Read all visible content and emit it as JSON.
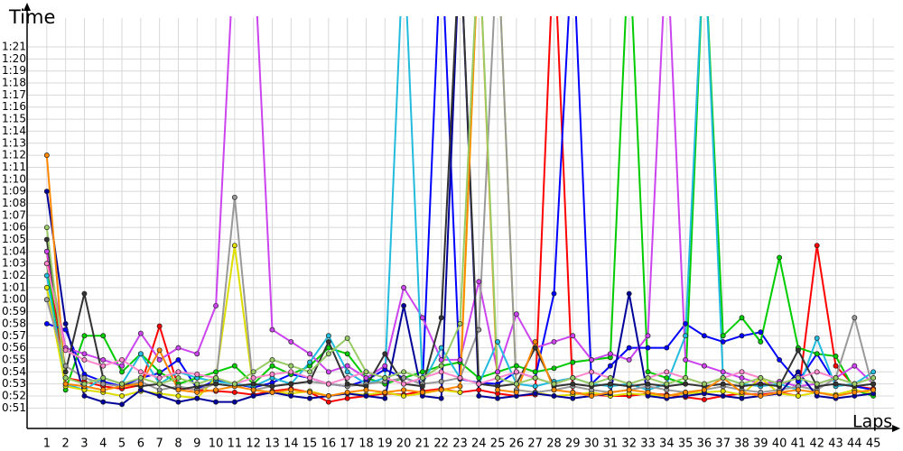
{
  "chart_data": {
    "type": "line",
    "x_label": "Laps",
    "y_label": "Time",
    "grid": true,
    "x": [
      1,
      2,
      3,
      4,
      5,
      6,
      7,
      8,
      9,
      10,
      11,
      12,
      13,
      14,
      15,
      16,
      17,
      18,
      19,
      20,
      21,
      22,
      23,
      24,
      25,
      26,
      27,
      28,
      29,
      30,
      31,
      32,
      33,
      34,
      35,
      36,
      37,
      38,
      39,
      40,
      41,
      42,
      43,
      44,
      45
    ],
    "xlim": [
      -0.05,
      46.1
    ],
    "xticks": [
      1,
      2,
      3,
      4,
      5,
      6,
      7,
      8,
      9,
      10,
      11,
      12,
      13,
      14,
      15,
      16,
      17,
      18,
      19,
      20,
      21,
      22,
      23,
      24,
      25,
      26,
      27,
      28,
      29,
      30,
      31,
      32,
      33,
      34,
      35,
      36,
      37,
      38,
      39,
      40,
      41,
      42,
      43,
      44,
      45
    ],
    "ylim": [
      49.3,
      83.4
    ],
    "yticks": [
      {
        "value": 51,
        "label": "0:51"
      },
      {
        "value": 52,
        "label": "0:52"
      },
      {
        "value": 53,
        "label": "0:53"
      },
      {
        "value": 54,
        "label": "0:54"
      },
      {
        "value": 55,
        "label": "0:55"
      },
      {
        "value": 56,
        "label": "0:56"
      },
      {
        "value": 57,
        "label": "0:57"
      },
      {
        "value": 58,
        "label": "0:58"
      },
      {
        "value": 59,
        "label": "0:59"
      },
      {
        "value": 60,
        "label": "1:00"
      },
      {
        "value": 61,
        "label": "1:01"
      },
      {
        "value": 62,
        "label": "1:02"
      },
      {
        "value": 63,
        "label": "1:03"
      },
      {
        "value": 64,
        "label": "1:04"
      },
      {
        "value": 65,
        "label": "1:05"
      },
      {
        "value": 66,
        "label": "1:06"
      },
      {
        "value": 67,
        "label": "1:07"
      },
      {
        "value": 68,
        "label": "1:08"
      },
      {
        "value": 69,
        "label": "1:09"
      },
      {
        "value": 70,
        "label": "1:10"
      },
      {
        "value": 71,
        "label": "1:11"
      },
      {
        "value": 72,
        "label": "1:12"
      },
      {
        "value": 73,
        "label": "1:13"
      },
      {
        "value": 74,
        "label": "1:14"
      },
      {
        "value": 75,
        "label": "1:15"
      },
      {
        "value": 76,
        "label": "1:16"
      },
      {
        "value": 77,
        "label": "1:17"
      },
      {
        "value": 78,
        "label": "1:18"
      },
      {
        "value": 79,
        "label": "1:19"
      },
      {
        "value": 80,
        "label": "1:20"
      },
      {
        "value": 81,
        "label": "1:21"
      }
    ],
    "series": [
      {
        "color": "#ff0000",
        "values": [
          64,
          53.5,
          53.2,
          52.8,
          52.6,
          52.9,
          57.8,
          52.7,
          52.5,
          52.4,
          52.3,
          52.1,
          52.4,
          52.6,
          52.3,
          51.5,
          51.8,
          52.0,
          52.2,
          52.1,
          52.4,
          52.6,
          52.3,
          52.5,
          52.2,
          52.0,
          52.1,
          90,
          52.3,
          52.1,
          52.0,
          52.0,
          52.2,
          52.1,
          51.9,
          51.7,
          52.0,
          52.2,
          52.1,
          52.3,
          52.0,
          64.5,
          54.5,
          52.8,
          52.6
        ]
      },
      {
        "color": "#0000ff",
        "values": [
          58,
          57.5,
          53.8,
          53.2,
          52.8,
          53.5,
          53.9,
          55.0,
          52.6,
          53.3,
          53.0,
          52.7,
          53.1,
          53.8,
          53.5,
          53.0,
          52.8,
          53.3,
          54.2,
          53.5,
          53.0,
          90,
          53.4,
          53.1,
          53.0,
          54.0,
          53.5,
          60.5,
          90,
          53.0,
          54.5,
          56.0,
          56.0,
          56.0,
          58.0,
          57.0,
          56.5,
          57.0,
          57.3,
          55.0,
          53.2,
          55.5,
          53.0,
          52.8,
          52.5
        ]
      },
      {
        "color": "#00cc00",
        "values": [
          63,
          52.5,
          57.0,
          57.0,
          54.0,
          55.5,
          54.0,
          53.0,
          53.5,
          54.0,
          54.5,
          53.0,
          54.5,
          53.8,
          54.5,
          56.0,
          55.5,
          53.5,
          53.0,
          53.5,
          54.0,
          54.5,
          54.8,
          53.5,
          54.0,
          54.5,
          54.0,
          54.3,
          54.8,
          55.0,
          55.2,
          90,
          54.0,
          53.5,
          53.0,
          90,
          57.0,
          58.5,
          56.5,
          63.5,
          56.0,
          55.5,
          55.3,
          52.5,
          52.0
        ]
      },
      {
        "color": "#cc44ee",
        "values": [
          64,
          56,
          55.5,
          55.0,
          54.5,
          57.2,
          55.0,
          56.0,
          55.5,
          59.5,
          90,
          90,
          57.5,
          56.5,
          55.5,
          54.0,
          54.5,
          53.5,
          54.5,
          61.0,
          58.5,
          55.0,
          55.0,
          61.5,
          54.0,
          58.8,
          56.0,
          56.5,
          57.0,
          55.0,
          55.5,
          55.0,
          57.0,
          90,
          55.0,
          54.5,
          54.0,
          53.5,
          53.0,
          53.2,
          52.8,
          53.0,
          53.5,
          54.5,
          53.0
        ]
      },
      {
        "color": "#22bbdd",
        "values": [
          62,
          53.0,
          52.5,
          53.5,
          53.0,
          55.5,
          53.0,
          54.0,
          53.5,
          53.2,
          53.0,
          52.8,
          53.5,
          53.0,
          54.8,
          57.0,
          54.0,
          53.0,
          53.5,
          90,
          53.0,
          56.0,
          53.5,
          53.0,
          56.5,
          53.0,
          52.8,
          53.2,
          53.5,
          53.0,
          52.8,
          53.0,
          52.5,
          53.0,
          57.0,
          90,
          53.5,
          53.0,
          52.8,
          53.0,
          52.5,
          56.8,
          52.8,
          53.0,
          54.0
        ]
      },
      {
        "color": "#dddd00",
        "values": [
          61,
          52.8,
          52.5,
          52.3,
          52.0,
          52.4,
          52.2,
          52.0,
          51.8,
          53.5,
          64.5,
          52.5,
          52.3,
          52.2,
          52.4,
          52.0,
          52.2,
          52.1,
          52.3,
          52.0,
          52.2,
          52.5,
          52.3,
          90,
          90,
          52.5,
          52.3,
          52.0,
          52.1,
          52.3,
          52.0,
          52.2,
          52.1,
          52.0,
          52.2,
          52.3,
          52.4,
          52.1,
          53.5,
          52.2,
          52.0,
          52.3,
          52.1,
          52.5,
          52.2
        ]
      },
      {
        "color": "#999999",
        "values": [
          60,
          54.5,
          53.5,
          53.0,
          52.8,
          53.2,
          52.5,
          52.8,
          52.5,
          53.0,
          68.5,
          52.5,
          52.8,
          53.0,
          53.2,
          53.0,
          52.8,
          53.0,
          53.2,
          53.5,
          53.0,
          53.2,
          53.5,
          57.5,
          90,
          52.5,
          52.3,
          52.5,
          52.8,
          52.5,
          52.3,
          52.5,
          52.8,
          52.5,
          52.3,
          52.5,
          52.8,
          52.5,
          52.3,
          52.5,
          52.8,
          52.5,
          53.5,
          58.5,
          52.5
        ]
      },
      {
        "color": "#000099",
        "values": [
          69,
          58,
          52.0,
          51.5,
          51.3,
          52.5,
          52.0,
          51.5,
          51.8,
          51.5,
          51.5,
          52.0,
          52.3,
          52.0,
          51.8,
          52.0,
          52.2,
          52.0,
          51.8,
          59.5,
          52.0,
          51.8,
          90,
          52.0,
          51.8,
          52.0,
          52.2,
          52.0,
          51.8,
          52.0,
          52.2,
          60.5,
          52.0,
          51.8,
          52.0,
          52.2,
          52.0,
          51.8,
          52.0,
          52.2,
          54.0,
          52.0,
          51.8,
          52.0,
          52.2
        ]
      },
      {
        "color": "#333333",
        "values": [
          65,
          54.0,
          60.5,
          53.5,
          53.0,
          52.8,
          53.0,
          52.5,
          52.8,
          53.0,
          52.8,
          53.0,
          52.8,
          53.0,
          53.2,
          56.5,
          53.0,
          52.8,
          55.5,
          53.0,
          52.8,
          58.5,
          90,
          53.0,
          52.8,
          53.0,
          56.0,
          52.8,
          53.0,
          52.8,
          53.0,
          52.8,
          53.0,
          52.8,
          53.0,
          52.8,
          53.0,
          52.8,
          53.0,
          52.8,
          55.8,
          52.8,
          53.0,
          52.8,
          53.0
        ]
      },
      {
        "color": "#ff8800",
        "values": [
          72,
          53.0,
          52.8,
          52.5,
          52.8,
          53.0,
          55.8,
          52.5,
          52.3,
          52.5,
          52.8,
          52.5,
          52.3,
          52.5,
          52.3,
          52.0,
          52.3,
          52.5,
          52.3,
          52.5,
          52.3,
          52.5,
          52.8,
          90,
          52.5,
          52.3,
          56.5,
          52.5,
          52.3,
          52.0,
          52.3,
          52.5,
          52.3,
          52.0,
          52.3,
          52.5,
          53.5,
          52.3,
          52.0,
          52.3,
          52.5,
          52.3,
          52.0,
          52.3,
          52.5
        ]
      },
      {
        "color": "#ff88cc",
        "values": [
          63,
          55.8,
          55.0,
          54.5,
          55.0,
          54.0,
          53.5,
          54.0,
          53.8,
          53.5,
          53.0,
          53.5,
          53.8,
          54.0,
          53.5,
          53.0,
          53.5,
          54.0,
          53.5,
          53.0,
          53.5,
          54.0,
          53.5,
          53.0,
          53.5,
          54.0,
          53.5,
          53.0,
          53.5,
          54.0,
          53.5,
          53.0,
          53.5,
          54.0,
          53.5,
          53.0,
          53.5,
          54.0,
          53.5,
          53.0,
          53.5,
          54.0,
          53.5,
          53.0,
          53.5
        ]
      },
      {
        "color": "#99cc66",
        "values": [
          66,
          53.5,
          53.0,
          53.5,
          53.0,
          53.5,
          53.0,
          53.5,
          53.0,
          53.5,
          53.0,
          54.0,
          55.0,
          54.5,
          54.0,
          55.5,
          56.8,
          54.0,
          53.5,
          54.0,
          53.5,
          54.5,
          58.0,
          90,
          53.5,
          53.0,
          53.5,
          53.0,
          53.5,
          53.0,
          53.5,
          53.0,
          53.5,
          53.0,
          53.5,
          53.0,
          53.5,
          53.0,
          53.5,
          53.0,
          53.5,
          53.0,
          53.5,
          53.0,
          53.5
        ]
      }
    ]
  }
}
